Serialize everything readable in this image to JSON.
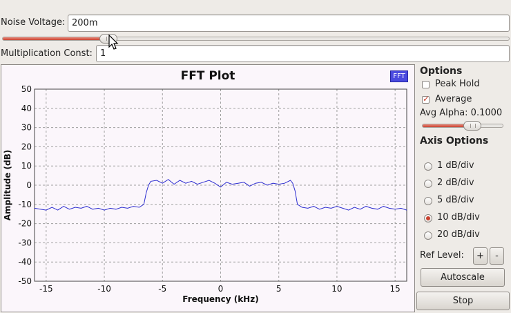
{
  "controls": {
    "noise_voltage_label": "Noise Voltage:",
    "noise_voltage_value": "200m",
    "noise_slider_fraction": 0.21,
    "mult_const_label": "Multiplication Const:",
    "mult_const_value": "1"
  },
  "plot": {
    "title": "FFT Plot",
    "legend": "FFT",
    "xlabel": "Frequency (kHz)",
    "ylabel": "Amplitude (dB)",
    "colors": {
      "trace": "#2b2bd0",
      "legend": "#4a4adf",
      "grid": "#a0a0a0"
    }
  },
  "options": {
    "title": "Options",
    "peak_hold_label": "Peak Hold",
    "peak_hold_checked": false,
    "average_label": "Average",
    "average_checked": true,
    "avg_alpha_label": "Avg Alpha: 0.1000",
    "avg_alpha_fraction": 0.62
  },
  "axis_options": {
    "title": "Axis Options",
    "radios": [
      {
        "label": "1 dB/div",
        "selected": false
      },
      {
        "label": "2 dB/div",
        "selected": false
      },
      {
        "label": "5 dB/div",
        "selected": false
      },
      {
        "label": "10 dB/div",
        "selected": true
      },
      {
        "label": "20 dB/div",
        "selected": false
      }
    ],
    "ref_level_label": "Ref Level:",
    "ref_plus": "+",
    "ref_minus": "-",
    "autoscale_label": "Autoscale"
  },
  "stop_label": "Stop",
  "chart_data": {
    "type": "line",
    "title": "FFT Plot",
    "xlabel": "Frequency (kHz)",
    "ylabel": "Amplitude (dB)",
    "xlim": [
      -16,
      16
    ],
    "ylim": [
      -50,
      50
    ],
    "x_ticks": [
      -15,
      -10,
      -5,
      0,
      5,
      10,
      15
    ],
    "y_ticks": [
      50,
      40,
      30,
      20,
      10,
      0,
      -10,
      -20,
      -30,
      -40,
      -50
    ],
    "grid": true,
    "legend": "top-right",
    "series": [
      {
        "name": "FFT",
        "x": [
          -16,
          -15.5,
          -15,
          -14.5,
          -14,
          -13.5,
          -13,
          -12.5,
          -12,
          -11.5,
          -11,
          -10.5,
          -10,
          -9.5,
          -9,
          -8.5,
          -8,
          -7.5,
          -7,
          -6.6,
          -6.4,
          -6.2,
          -6,
          -5.5,
          -5,
          -4.5,
          -4,
          -3.5,
          -3,
          -2.5,
          -2,
          -1.5,
          -1,
          -0.5,
          0,
          0.5,
          1,
          1.5,
          2,
          2.5,
          3,
          3.5,
          4,
          4.5,
          5,
          5.5,
          6,
          6.2,
          6.4,
          6.6,
          7,
          7.5,
          8,
          8.5,
          9,
          9.5,
          10,
          10.5,
          11,
          11.5,
          12,
          12.5,
          13,
          13.5,
          14,
          14.5,
          15,
          15.5,
          16
        ],
        "values": [
          -12,
          -12.5,
          -13,
          -11.5,
          -13,
          -11,
          -12.5,
          -11.5,
          -12,
          -11,
          -12.5,
          -12,
          -13,
          -12,
          -12.5,
          -11.5,
          -12,
          -11,
          -11.5,
          -10,
          -4,
          0,
          2,
          2.5,
          1,
          3,
          0.5,
          2.5,
          1,
          2,
          0.5,
          1.5,
          2.5,
          1,
          -1,
          1.5,
          0.5,
          1,
          1.5,
          -0.5,
          1,
          1.5,
          0,
          1,
          0.5,
          1,
          2.5,
          1,
          -3,
          -10,
          -11.5,
          -12,
          -11,
          -12.5,
          -11.5,
          -12,
          -11,
          -12,
          -13,
          -11.5,
          -12.5,
          -11,
          -12,
          -12.5,
          -11,
          -12,
          -12.5,
          -12,
          -13
        ]
      }
    ]
  }
}
